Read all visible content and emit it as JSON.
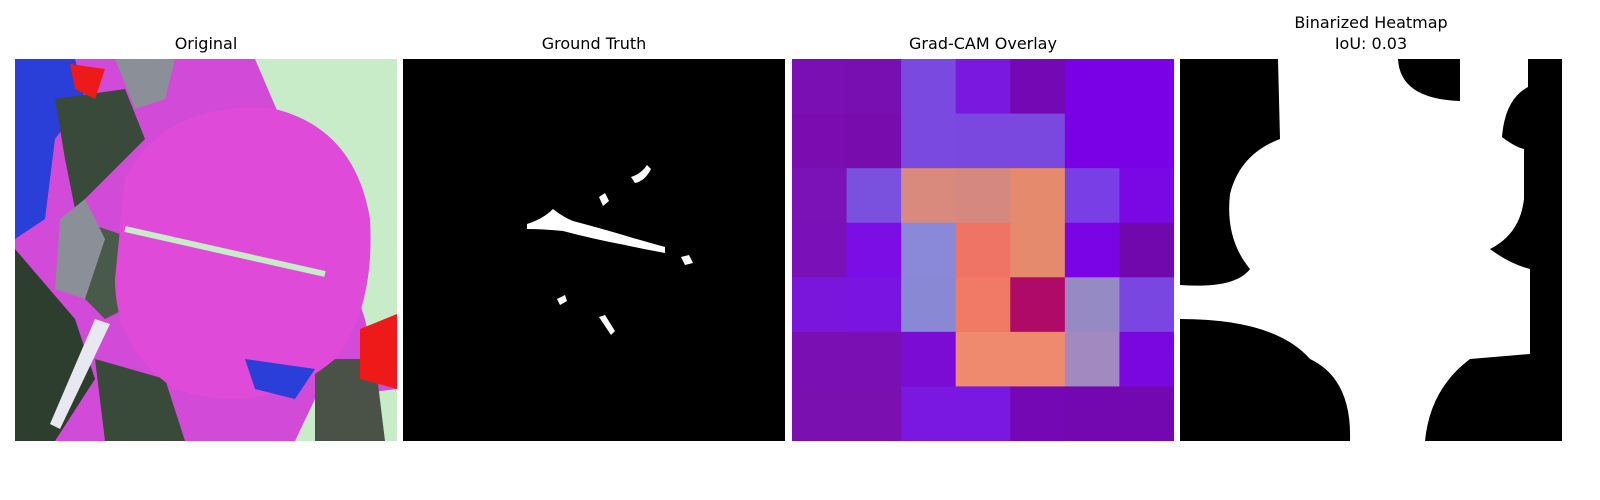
{
  "figure": {
    "panels": [
      {
        "id": "original",
        "title": "Original"
      },
      {
        "id": "ground_truth",
        "title": "Ground Truth"
      },
      {
        "id": "gradcam",
        "title": "Grad-CAM Overlay"
      },
      {
        "id": "binarized",
        "title_line1": "Binarized Heatmap",
        "title_line2": "IoU: 0.03"
      }
    ]
  },
  "gradcam_grid": {
    "rows": 7,
    "cols": 7,
    "colors": [
      [
        "#7a0fb4",
        "#780fb0",
        "#7a4ae0",
        "#7a18e0",
        "#7408b4",
        "#7a00e6",
        "#7a00e6"
      ],
      [
        "#7a0cb0",
        "#780cac",
        "#7a4ae0",
        "#7a48de",
        "#7a48de",
        "#7a00e6",
        "#7a00e6"
      ],
      [
        "#7a12b8",
        "#7a50de",
        "#d98a7c",
        "#d58880",
        "#e68a6e",
        "#7a3ee6",
        "#7a08e4"
      ],
      [
        "#7a10b8",
        "#7a0ee4",
        "#8a88d8",
        "#f07466",
        "#e68a6e",
        "#7a04e6",
        "#7008ae"
      ],
      [
        "#7a16dc",
        "#7a14e0",
        "#8888d4",
        "#f07a66",
        "#b00a68",
        "#968ac4",
        "#7a46e2"
      ],
      [
        "#7a10b4",
        "#7a10b4",
        "#7a0cd4",
        "#f08a6e",
        "#f08a6e",
        "#a28ac0",
        "#7a06e0"
      ],
      [
        "#7a10b0",
        "#7a10b0",
        "#7a18e2",
        "#7a18e2",
        "#7408b4",
        "#7408b0",
        "#7408b0"
      ]
    ]
  }
}
